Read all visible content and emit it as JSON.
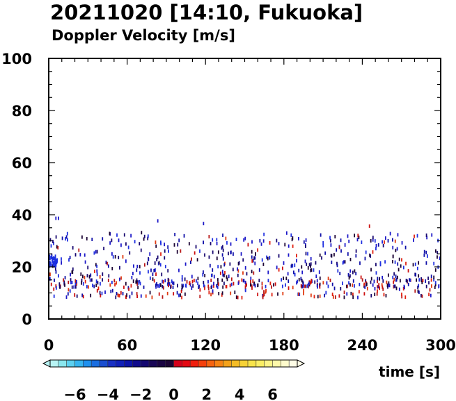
{
  "chart_data": {
    "type": "scatter",
    "title": "20211020 [14:10, Fukuoka]",
    "subtitle": "Doppler Velocity [m/s]",
    "xlabel": "time [s]",
    "ylabel": "",
    "xlim": [
      0,
      300
    ],
    "ylim": [
      0,
      100
    ],
    "x_ticks": [
      "0",
      "60",
      "120",
      "180",
      "240",
      "300"
    ],
    "y_ticks": [
      "0",
      "20",
      "40",
      "60",
      "80",
      "100"
    ],
    "grid": false,
    "colorbar": {
      "range": [
        -7.5,
        7.5
      ],
      "ticks": [
        "−6",
        "−4",
        "−2",
        "0",
        "2",
        "4",
        "6"
      ],
      "tick_values": [
        -6,
        -4,
        -2,
        0,
        2,
        4,
        6
      ],
      "colors": [
        "#b8f4f4",
        "#8ae6ee",
        "#5cd0f0",
        "#36b4f0",
        "#1e90ee",
        "#1a6ee0",
        "#1a4ed0",
        "#1830c4",
        "#1020b8",
        "#0c14a8",
        "#100a8c",
        "#140870",
        "#180656",
        "#1a0442",
        "#1c0434",
        "#d4001a",
        "#e40812",
        "#f01e0e",
        "#f4400c",
        "#f66410",
        "#f68414",
        "#f4a21a",
        "#f4bc26",
        "#f6d236",
        "#f8e44a",
        "#faee64",
        "#fcf488",
        "#fdf8aa",
        "#fefbcc",
        "#fffde6"
      ]
    }
  }
}
